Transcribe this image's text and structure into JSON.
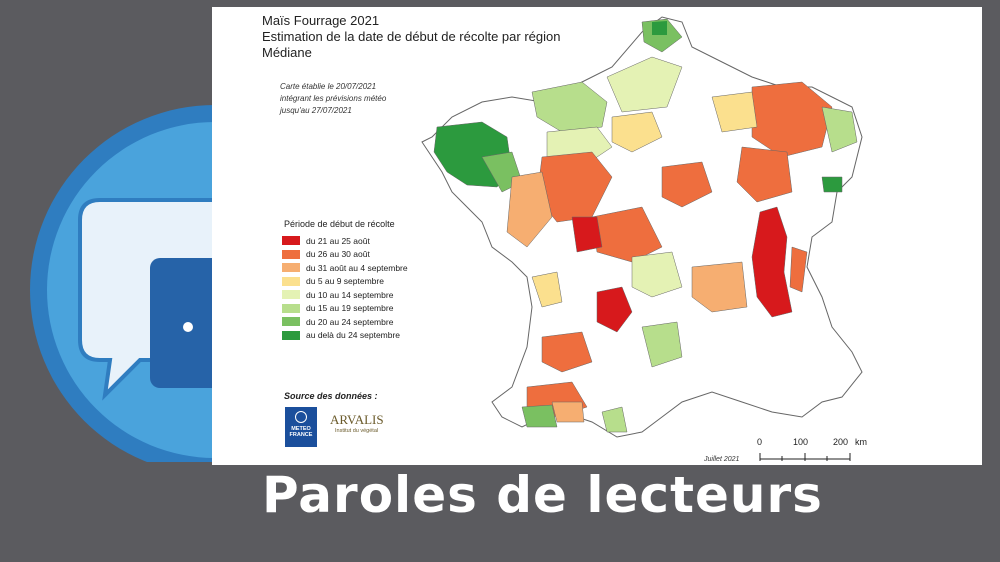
{
  "page": {
    "banner_text": "Paroles de lecteurs",
    "background_icon": "speech-bubbles-icon"
  },
  "map": {
    "title_line1": "Maïs Fourrage 2021",
    "title_line2": "Estimation de la date de début de récolte par région",
    "title_line3": "Médiane",
    "note_line1": "Carte établie le 20/07/2021",
    "note_line2": "intégrant les prévisions météo",
    "note_line3": "jusqu'au 27/07/2021",
    "legend_title": "Période de début de récolte",
    "legend": [
      {
        "label": "du 21 au 25 août",
        "color": "#d7191c"
      },
      {
        "label": "du 26 au 30 août",
        "color": "#ee6e3e"
      },
      {
        "label": "du 31 août au 4 septembre",
        "color": "#f6ae71"
      },
      {
        "label": "du 5 au 9 septembre",
        "color": "#fbe08e"
      },
      {
        "label": "du 10 au 14 septembre",
        "color": "#e4f2b4"
      },
      {
        "label": "du 15 au 19 septembre",
        "color": "#b7de8c"
      },
      {
        "label": "du 20 au 24 septembre",
        "color": "#7ac061"
      },
      {
        "label": "au delà du 24 septembre",
        "color": "#2c9a3e"
      }
    ],
    "source_label": "Source des données :",
    "meteo_logo_text": "METEO FRANCE",
    "arvalis_logo_text": "ARVALIS",
    "arvalis_subtitle": "Institut du végétal",
    "scale_labels": [
      "0",
      "100",
      "200",
      "km"
    ],
    "date_note": "Juillet 2021"
  }
}
